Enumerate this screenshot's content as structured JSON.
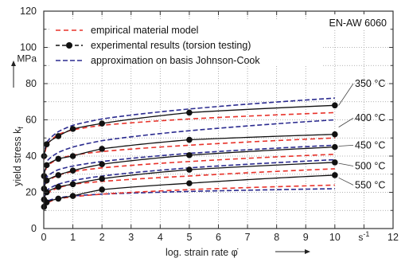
{
  "chart_data": {
    "type": "line",
    "material": "EN-AW 6060",
    "xlabel": "log. strain rate φ̇",
    "ylabel": "yield stress k",
    "ylabel_sub": "f",
    "y_unit": "MPa",
    "x_unit": "s",
    "x_unit_sup": "-1",
    "xlim": [
      0,
      12
    ],
    "ylim": [
      0,
      120
    ],
    "x_ticks": [
      0,
      1,
      2,
      3,
      4,
      5,
      6,
      7,
      8,
      9,
      10,
      12
    ],
    "y_ticks": [
      0,
      20,
      40,
      60,
      80,
      100,
      120
    ],
    "grid": true,
    "legend_position": "top-left",
    "legend": [
      {
        "label": "empirical material model",
        "style": "red-dashed"
      },
      {
        "label": "experimental results (torsion testing)",
        "style": "black-dashed-dot"
      },
      {
        "label": "approximation on basis Johnson-Cook",
        "style": "blue-dashed"
      }
    ],
    "colors": {
      "empirical": "#e8322a",
      "experimental": "#111111",
      "johnson_cook": "#2b2b8f",
      "grid": "#9a9a9a"
    },
    "temperatures": [
      {
        "label": "350 °C",
        "empirical": {
          "x": [
            0.01,
            0.1,
            0.5,
            1,
            2,
            5,
            10
          ],
          "y": [
            38,
            46,
            52,
            54.5,
            57,
            60.5,
            64
          ]
        },
        "experimental": {
          "x": [
            0.01,
            0.1,
            0.5,
            1,
            2,
            5,
            10
          ],
          "y": [
            40,
            46.5,
            51,
            55,
            58,
            64,
            68
          ]
        },
        "johnson_cook": {
          "x": [
            0.01,
            0.1,
            0.5,
            1,
            2,
            5,
            10
          ],
          "y": [
            40,
            47.5,
            53.5,
            57,
            60.5,
            66,
            72
          ]
        }
      },
      {
        "label": "400 °C",
        "empirical": {
          "x": [
            0.01,
            0.1,
            0.5,
            1,
            2,
            5,
            10
          ],
          "y": [
            28,
            34,
            38.5,
            40.5,
            42.5,
            46,
            50
          ]
        },
        "experimental": {
          "x": [
            0.01,
            0.1,
            0.5,
            1,
            2,
            5,
            10
          ],
          "y": [
            29,
            35,
            38.5,
            40,
            44,
            49,
            52
          ]
        },
        "johnson_cook": {
          "x": [
            0.01,
            0.1,
            0.5,
            1,
            2,
            5,
            10
          ],
          "y": [
            30,
            37,
            42,
            45,
            48.5,
            54,
            60
          ]
        }
      },
      {
        "label": "450 °C",
        "empirical": {
          "x": [
            0.01,
            0.1,
            0.5,
            1,
            2,
            5,
            10
          ],
          "y": [
            20.5,
            25.5,
            29.5,
            31.5,
            33.5,
            37,
            41
          ]
        },
        "experimental": {
          "x": [
            0.01,
            0.1,
            0.5,
            1,
            2,
            5,
            10
          ],
          "y": [
            22,
            26.5,
            29.5,
            32,
            35.5,
            40.5,
            45
          ]
        },
        "johnson_cook": {
          "x": [
            0.01,
            0.1,
            0.5,
            1,
            2,
            5,
            10
          ],
          "y": [
            23,
            28.5,
            32.5,
            34.5,
            37,
            41.5,
            46
          ]
        }
      },
      {
        "label": "500 °C",
        "empirical": {
          "x": [
            0.01,
            0.1,
            0.5,
            1,
            2,
            5,
            10
          ],
          "y": [
            15,
            19,
            22.5,
            24.5,
            26,
            29,
            33
          ]
        },
        "experimental": {
          "x": [
            0.01,
            0.1,
            0.5,
            1,
            2,
            5,
            10
          ],
          "y": [
            16,
            20,
            23,
            24.5,
            27.5,
            32.5,
            36.5
          ]
        },
        "johnson_cook": {
          "x": [
            0.01,
            0.1,
            0.5,
            1,
            2,
            5,
            10
          ],
          "y": [
            16.5,
            21,
            24.5,
            26.5,
            29,
            33.5,
            38
          ]
        }
      },
      {
        "label": "550 °C",
        "empirical": {
          "x": [
            0.01,
            0.1,
            0.5,
            1,
            2,
            5,
            10
          ],
          "y": [
            11,
            14,
            16.5,
            17.5,
            19,
            21.5,
            24
          ]
        },
        "experimental": {
          "x": [
            0.01,
            0.1,
            0.5,
            1,
            2,
            5,
            10
          ],
          "y": [
            12,
            14.5,
            16.5,
            18,
            21.5,
            25,
            29.5
          ]
        },
        "johnson_cook": {
          "x": [
            0.01,
            0.1,
            0.5,
            1,
            2,
            5,
            10
          ],
          "y": [
            12.5,
            15,
            17,
            18,
            19,
            20.5,
            22
          ]
        }
      }
    ]
  }
}
